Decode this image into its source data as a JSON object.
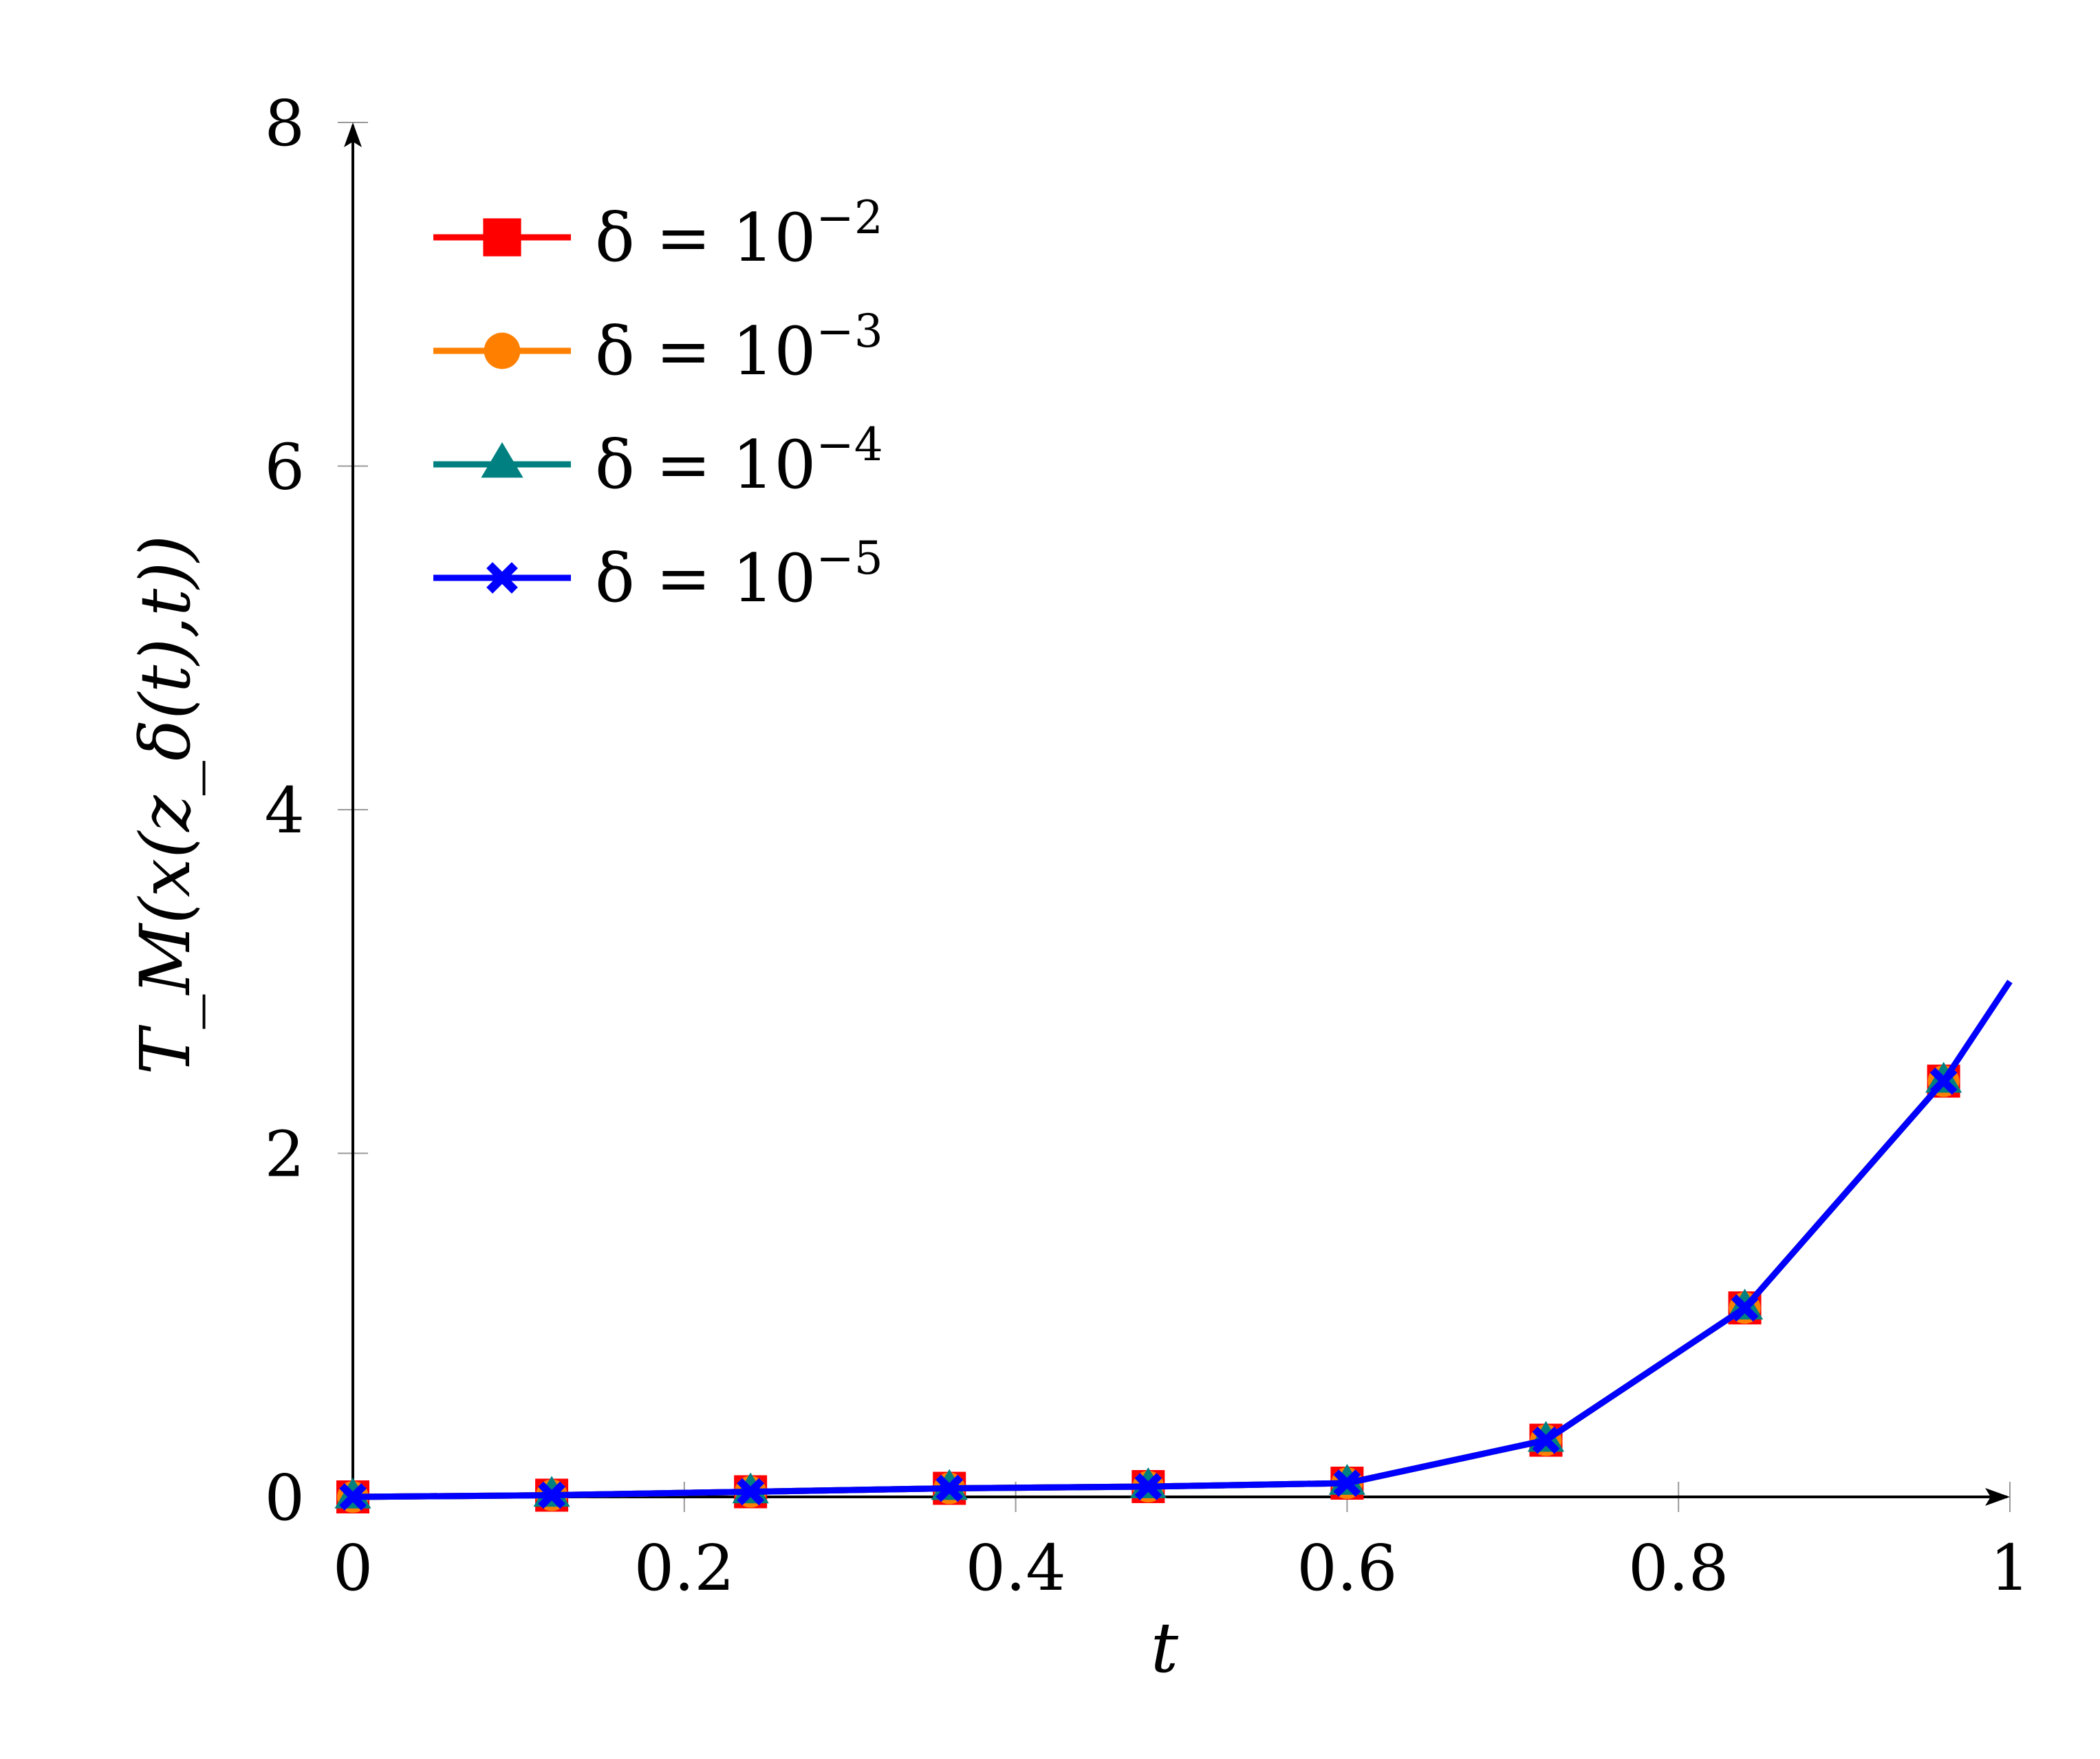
{
  "chart_data": {
    "type": "line",
    "title": "",
    "xlabel": "t",
    "ylabel": "T_M(x(z_δ(t),t))",
    "xlim": [
      0,
      1
    ],
    "ylim": [
      0,
      8
    ],
    "xticks": [
      0,
      0.2,
      0.4,
      0.6,
      0.8,
      1
    ],
    "xtick_labels": [
      "0",
      "0.2",
      "0.4",
      "0.6",
      "0.8",
      "1"
    ],
    "yticks": [
      0,
      2,
      4,
      6,
      8
    ],
    "ytick_labels": [
      "0",
      "2",
      "4",
      "6",
      "8"
    ],
    "grid": false,
    "legend_position": "top-left",
    "x": [
      0,
      0.12,
      0.24,
      0.36,
      0.48,
      0.6,
      0.72,
      0.84,
      0.96
    ],
    "line_end": {
      "x": 1,
      "y": 3.0
    },
    "series": [
      {
        "name": "δ = 10",
        "exponent": "−2",
        "color": "#ff0000",
        "marker": "square",
        "values": [
          0,
          0.01,
          0.03,
          0.05,
          0.06,
          0.08,
          0.33,
          1.1,
          2.42
        ]
      },
      {
        "name": "δ = 10",
        "exponent": "−3",
        "color": "#ff8000",
        "marker": "circle",
        "values": [
          0,
          0.01,
          0.03,
          0.05,
          0.06,
          0.08,
          0.33,
          1.1,
          2.42
        ]
      },
      {
        "name": "δ = 10",
        "exponent": "−4",
        "color": "#008080",
        "marker": "triangle",
        "values": [
          0,
          0.01,
          0.03,
          0.05,
          0.06,
          0.08,
          0.33,
          1.1,
          2.42
        ]
      },
      {
        "name": "δ = 10",
        "exponent": "−5",
        "color": "#0000ff",
        "marker": "x",
        "values": [
          0,
          0.01,
          0.03,
          0.05,
          0.06,
          0.08,
          0.33,
          1.1,
          2.42
        ]
      }
    ]
  }
}
